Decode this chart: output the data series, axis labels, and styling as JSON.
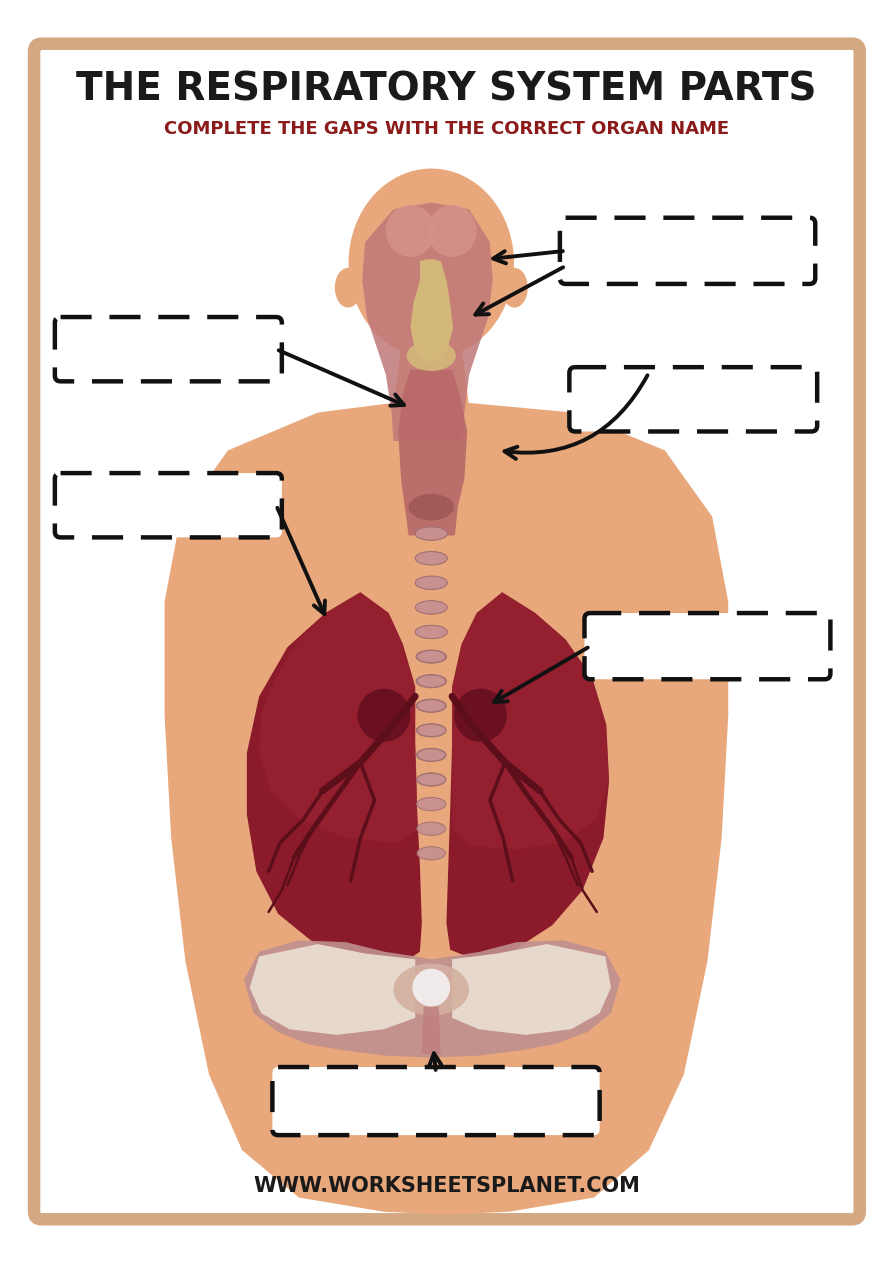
{
  "title": "THE RESPIRATORY SYSTEM PARTS",
  "subtitle": "COMPLETE THE GAPS WITH THE CORRECT ORGAN NAME",
  "website": "WWW.WORKSHEETSPLANET.COM",
  "bg_color": "#FFFFFF",
  "border_color": "#D4A882",
  "title_color": "#1a1a1a",
  "subtitle_color": "#8B1A1A",
  "skin_color": "#E8A87C",
  "skin_shadow": "#D4936B",
  "nasal_pink": "#C07878",
  "nasal_light": "#D4948A",
  "nose_bone": "#D4B87A",
  "throat_color": "#B86868",
  "trachea_color": "#C89090",
  "trachea_edge": "#A07070",
  "lung_main": "#8B1A2A",
  "lung_dark": "#5C0F1A",
  "lung_mid": "#7A1520",
  "diaphragm_pink": "#C09090",
  "diaphragm_light": "#D4B0A0",
  "diaphragm_white": "#E8DDD0",
  "diaphragm_stem": "#C08080",
  "box_color": "#111111",
  "arrow_color": "#111111",
  "fig_width": 8.93,
  "fig_height": 12.63,
  "dpi": 100
}
